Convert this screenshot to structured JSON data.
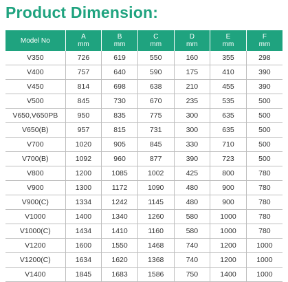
{
  "title": "Product Dimension:",
  "table": {
    "headers": [
      {
        "letter": "Model No",
        "unit": ""
      },
      {
        "letter": "A",
        "unit": "mm"
      },
      {
        "letter": "B",
        "unit": "mm"
      },
      {
        "letter": "C",
        "unit": "mm"
      },
      {
        "letter": "D",
        "unit": "mm"
      },
      {
        "letter": "E",
        "unit": "mm"
      },
      {
        "letter": "F",
        "unit": "mm"
      }
    ],
    "rows": [
      [
        "V350",
        "726",
        "619",
        "550",
        "160",
        "355",
        "298"
      ],
      [
        "V400",
        "757",
        "640",
        "590",
        "175",
        "410",
        "390"
      ],
      [
        "V450",
        "814",
        "698",
        "638",
        "210",
        "455",
        "390"
      ],
      [
        "V500",
        "845",
        "730",
        "670",
        "235",
        "535",
        "500"
      ],
      [
        "V650,V650PB",
        "950",
        "835",
        "775",
        "300",
        "635",
        "500"
      ],
      [
        "V650(B)",
        "957",
        "815",
        "731",
        "300",
        "635",
        "500"
      ],
      [
        "V700",
        "1020",
        "905",
        "845",
        "330",
        "710",
        "500"
      ],
      [
        "V700(B)",
        "1092",
        "960",
        "877",
        "390",
        "723",
        "500"
      ],
      [
        "V800",
        "1200",
        "1085",
        "1002",
        "425",
        "800",
        "780"
      ],
      [
        "V900",
        "1300",
        "1172",
        "1090",
        "480",
        "900",
        "780"
      ],
      [
        "V900(C)",
        "1334",
        "1242",
        "1145",
        "480",
        "900",
        "780"
      ],
      [
        "V1000",
        "1400",
        "1340",
        "1260",
        "580",
        "1000",
        "780"
      ],
      [
        "V1000(C)",
        "1434",
        "1410",
        "1160",
        "580",
        "1000",
        "780"
      ],
      [
        "V1200",
        "1600",
        "1550",
        "1468",
        "740",
        "1200",
        "1000"
      ],
      [
        "V1200(C)",
        "1634",
        "1620",
        "1368",
        "740",
        "1200",
        "1000"
      ],
      [
        "V1400",
        "1845",
        "1683",
        "1586",
        "750",
        "1400",
        "1000"
      ]
    ]
  },
  "colors": {
    "accent": "#1fa37f",
    "header_text": "#ffffff",
    "cell_text": "#333333",
    "grid": "#bdbdbd"
  }
}
